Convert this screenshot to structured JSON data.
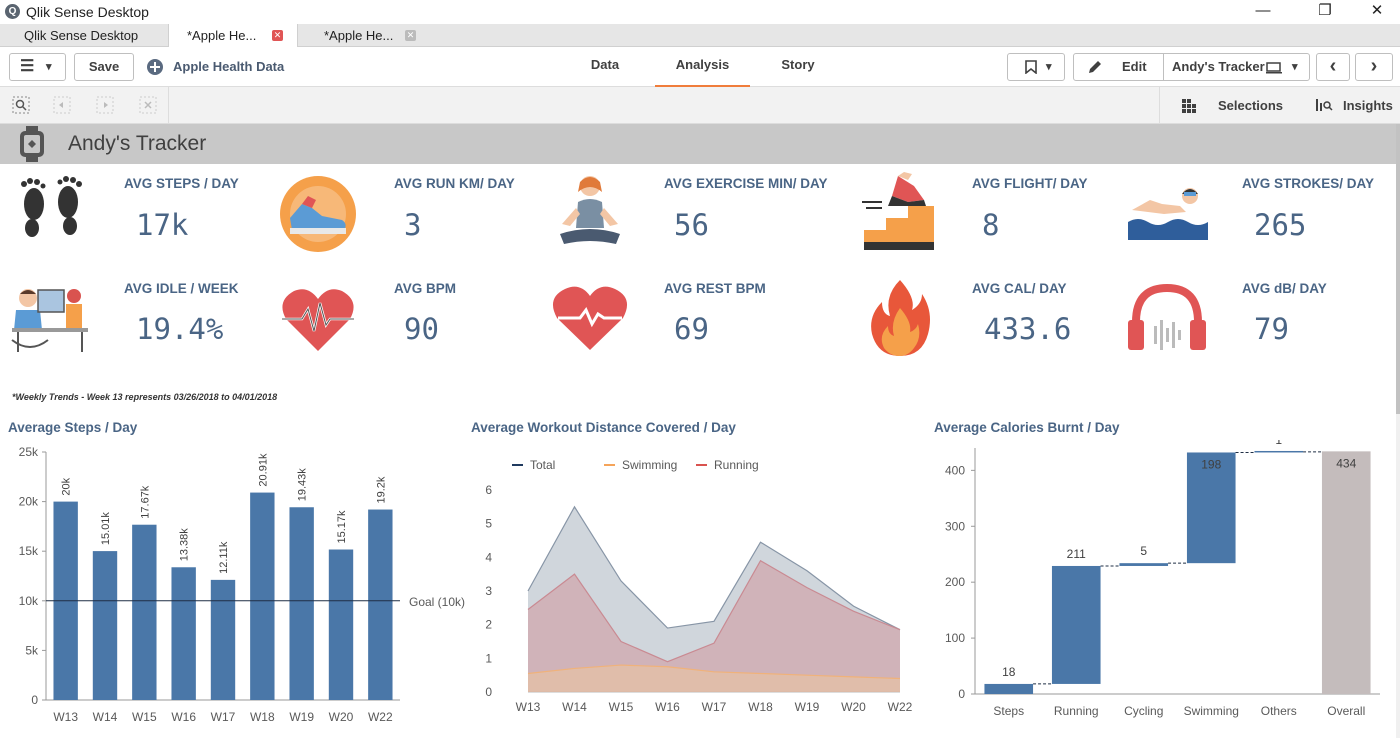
{
  "window": {
    "title": "Qlik Sense Desktop",
    "minimize": "—",
    "maximize": "❐",
    "close": "✕"
  },
  "tabs": [
    {
      "label": "Qlik Sense Desktop hub"
    },
    {
      "label": "*Apple He...",
      "close": "✕"
    },
    {
      "label": "*Apple He...",
      "close": "✕"
    }
  ],
  "toolbar": {
    "menu_icon": "☰",
    "dropdown_icon": "▾",
    "save_label": "Save",
    "app_name": "Apple Health Data",
    "nav": [
      "Data",
      "Analysis",
      "Story"
    ],
    "active_nav": "Analysis",
    "bookmark_icon": "bookmark-icon",
    "edit_label": "Edit",
    "sheet_selector": "Andy's Tracker",
    "prev_icon": "‹",
    "next_icon": "›"
  },
  "subtoolbar": {
    "selections_label": "Selections",
    "insights_label": "Insights"
  },
  "sheet": {
    "title": "Andy's Tracker"
  },
  "kpis": [
    {
      "label": "AVG STEPS / DAY",
      "value": "17k",
      "icon": "footprints-icon"
    },
    {
      "label": "AVG RUN KM/ DAY",
      "value": "3",
      "icon": "running-shoe-icon"
    },
    {
      "label": "AVG EXERCISE MIN/ DAY",
      "value": "56",
      "icon": "yoga-icon"
    },
    {
      "label": "AVG FLIGHT/ DAY",
      "value": "8",
      "icon": "stairs-icon"
    },
    {
      "label": "AVG STROKES/ DAY",
      "value": "265",
      "icon": "swimmer-icon"
    },
    {
      "label": "AVG IDLE / WEEK",
      "value": "19.4%",
      "icon": "desk-worker-icon"
    },
    {
      "label": "AVG BPM",
      "value": "90",
      "icon": "heartbeat-icon"
    },
    {
      "label": "AVG REST BPM",
      "value": "69",
      "icon": "heart-rest-icon"
    },
    {
      "label": "AVG CAL/ DAY",
      "value": "433.6",
      "icon": "flame-icon"
    },
    {
      "label": "AVG dB/ DAY",
      "value": "79",
      "icon": "headphones-icon"
    }
  ],
  "note": "*Weekly Trends - Week 13 represents 03/26/2018 to 04/01/2018",
  "colors": {
    "bar": "#4a77a8",
    "kpi_text": "#4a6585",
    "total": "#1f3a5f",
    "swimming": "#f5a45a",
    "running": "#d9534f",
    "overall": "#c4bcbc",
    "accent_tab": "#f07d3b"
  },
  "chart_data": [
    {
      "type": "bar",
      "title": "Average Steps / Day",
      "categories": [
        "W13",
        "W14",
        "W15",
        "W16",
        "W17",
        "W18",
        "W19",
        "W20",
        "W22"
      ],
      "values": [
        20000,
        15010,
        17670,
        13380,
        12110,
        20910,
        19430,
        15170,
        19200
      ],
      "value_labels": [
        "20k",
        "15.01k",
        "17.67k",
        "13.38k",
        "12.11k",
        "20.91k",
        "19.43k",
        "15.17k",
        "19.2k"
      ],
      "yticks": [
        "0",
        "5k",
        "10k",
        "15k",
        "20k",
        "25k"
      ],
      "ylim": [
        0,
        25000
      ],
      "reference_line": {
        "label": "Goal (10k)",
        "value": 10000
      }
    },
    {
      "type": "area",
      "title": "Average Workout Distance Covered / Day",
      "categories": [
        "W13",
        "W14",
        "W15",
        "W16",
        "W17",
        "W18",
        "W19",
        "W20",
        "W22"
      ],
      "yticks": [
        "0",
        "1",
        "2",
        "3",
        "4",
        "5",
        "6"
      ],
      "ylim": [
        0,
        6
      ],
      "legend_position": "top-left",
      "series": [
        {
          "name": "Total",
          "values": [
            3.0,
            5.5,
            3.3,
            1.9,
            2.1,
            4.45,
            3.6,
            2.55,
            1.85
          ]
        },
        {
          "name": "Swimming",
          "values": [
            0.55,
            0.7,
            0.8,
            0.75,
            0.6,
            0.55,
            0.5,
            0.45,
            0.4
          ]
        },
        {
          "name": "Running",
          "values": [
            2.45,
            3.5,
            1.5,
            0.9,
            1.45,
            3.9,
            3.1,
            2.4,
            1.85
          ]
        }
      ]
    },
    {
      "type": "bar",
      "subtype": "waterfall",
      "title": "Average Calories Burnt / Day",
      "categories": [
        "Steps",
        "Running",
        "Cycling",
        "Swimming",
        "Others",
        "Overall"
      ],
      "values": [
        18,
        211,
        5,
        198,
        1,
        434
      ],
      "value_labels": [
        "18",
        "211",
        "5",
        "198",
        "1",
        "434"
      ],
      "yticks": [
        "0",
        "100",
        "200",
        "300",
        "400"
      ],
      "ylim": [
        0,
        440
      ]
    }
  ]
}
